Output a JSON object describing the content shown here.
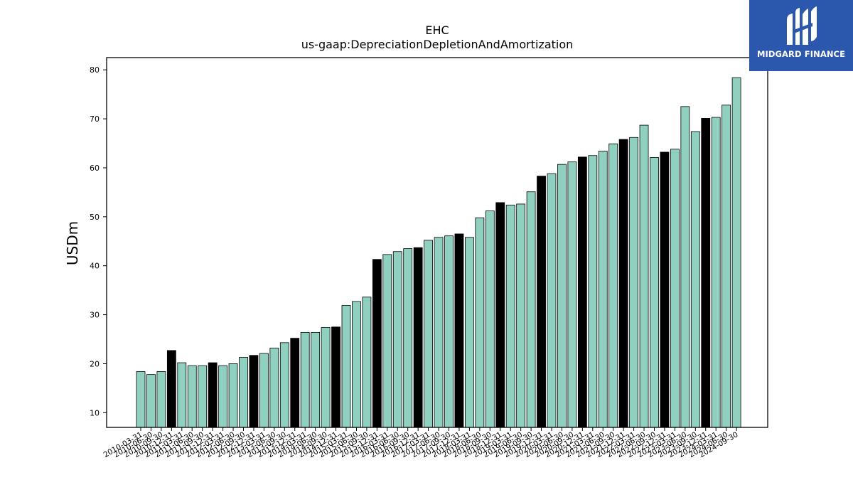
{
  "logo": {
    "text": "MIDGARD FINANCE",
    "icon": "midgard-logo-icon",
    "bg_color": "#2b57ad"
  },
  "chart_data": {
    "type": "bar",
    "title": "EHC",
    "subtitle": "us-gaap:DepreciationDepletionAndAmortization",
    "xlabel": "",
    "ylabel": "USDm",
    "ylim": [
      7,
      82.5
    ],
    "yticks": [
      10,
      20,
      30,
      40,
      50,
      60,
      70,
      80
    ],
    "grid": false,
    "colors": {
      "quarter": "#8fd0c0",
      "year_end": "#000000",
      "edge": "#000000"
    },
    "categories": [
      "2010-03-31",
      "2010-06-30",
      "2010-09-30",
      "2010-12-31",
      "2011-03-31",
      "2011-06-30",
      "2011-09-30",
      "2011-12-31",
      "2012-03-31",
      "2012-06-30",
      "2012-09-30",
      "2012-12-31",
      "2013-03-31",
      "2013-06-30",
      "2013-09-30",
      "2013-12-31",
      "2014-03-31",
      "2014-06-30",
      "2014-09-30",
      "2014-12-31",
      "2015-03-31",
      "2015-06-30",
      "2015-09-30",
      "2015-12-31",
      "2016-03-31",
      "2016-06-30",
      "2016-09-30",
      "2016-12-31",
      "2017-03-31",
      "2017-06-30",
      "2017-09-30",
      "2017-12-31",
      "2018-03-31",
      "2018-06-30",
      "2018-09-30",
      "2018-12-31",
      "2019-03-31",
      "2019-06-30",
      "2019-09-30",
      "2019-12-31",
      "2020-03-31",
      "2020-06-30",
      "2020-09-30",
      "2020-12-31",
      "2021-03-31",
      "2021-06-30",
      "2021-09-30",
      "2021-12-31",
      "2022-03-31",
      "2022-06-30",
      "2022-09-30",
      "2022-12-31",
      "2023-03-31",
      "2023-06-30",
      "2023-09-30",
      "2023-12-31",
      "2024-03-31",
      "2024-06-30",
      "2024-09-30"
    ],
    "values": [
      18.4,
      17.8,
      18.4,
      22.7,
      20.2,
      19.6,
      19.6,
      20.2,
      19.6,
      20.0,
      21.3,
      21.7,
      22.1,
      23.2,
      24.3,
      25.2,
      26.4,
      26.4,
      27.4,
      27.5,
      31.9,
      32.7,
      33.6,
      41.3,
      42.3,
      42.9,
      43.5,
      43.7,
      45.2,
      45.8,
      46.1,
      46.5,
      45.8,
      49.8,
      51.2,
      52.9,
      52.4,
      52.6,
      55.1,
      58.3,
      58.8,
      60.7,
      61.2,
      62.2,
      62.5,
      63.4,
      64.9,
      65.8,
      66.2,
      68.7,
      62.1,
      63.2,
      63.8,
      72.5,
      67.4,
      70.1,
      70.3,
      72.8,
      78.4
    ],
    "year_end_flags": [
      0,
      0,
      0,
      1,
      0,
      0,
      0,
      1,
      0,
      0,
      0,
      1,
      0,
      0,
      0,
      1,
      0,
      0,
      0,
      1,
      0,
      0,
      0,
      1,
      0,
      0,
      0,
      1,
      0,
      0,
      0,
      1,
      0,
      0,
      0,
      1,
      0,
      0,
      0,
      1,
      0,
      0,
      0,
      1,
      0,
      0,
      0,
      1,
      0,
      0,
      0,
      1,
      0,
      0,
      0,
      1,
      0,
      0,
      0
    ]
  }
}
